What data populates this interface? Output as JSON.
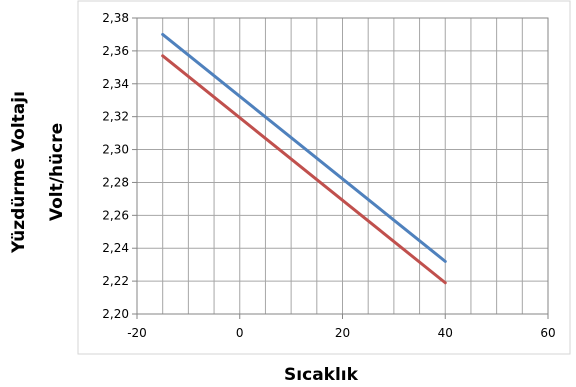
{
  "chart_data": {
    "type": "line",
    "title": "",
    "xlabel": "Sıcaklık",
    "ylabel": [
      "Yüzdürme Voltajı",
      "Volt/hücre"
    ],
    "xlim": [
      -20,
      60
    ],
    "ylim": [
      2.2,
      2.38
    ],
    "x_ticks": [
      "-20",
      "0",
      "20",
      "40",
      "60"
    ],
    "y_ticks": [
      "2,20",
      "2,22",
      "2,24",
      "2,26",
      "2,28",
      "2,30",
      "2,32",
      "2,34",
      "2,36",
      "2,38"
    ],
    "grid": true,
    "legend": "none",
    "series": [
      {
        "color": "#4F81BD",
        "x": [
          -15,
          40
        ],
        "y": [
          2.37,
          2.232
        ]
      },
      {
        "color": "#C0504D",
        "x": [
          -15,
          40
        ],
        "y": [
          2.357,
          2.219
        ]
      }
    ]
  }
}
